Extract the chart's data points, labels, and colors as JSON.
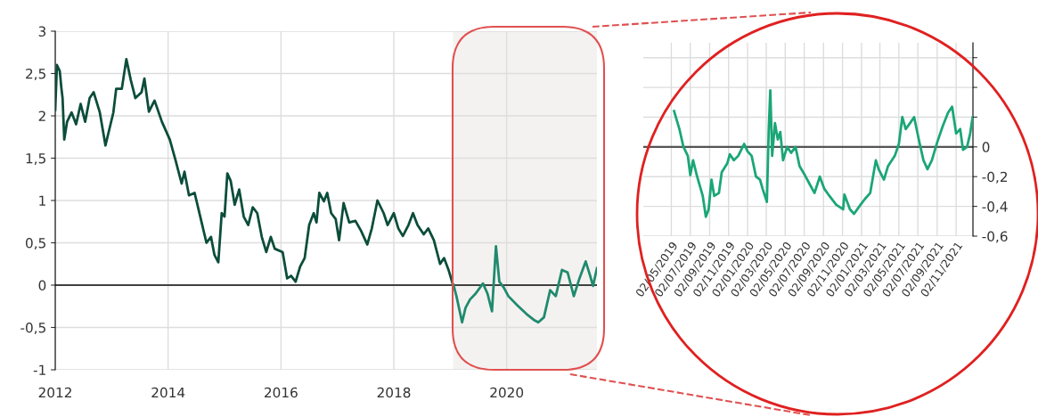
{
  "chart_data": [
    {
      "type": "line",
      "xlim": [
        2012,
        2021.6
      ],
      "ylim": [
        -1,
        3
      ],
      "xticks": [
        2012,
        2014,
        2016,
        2018,
        2020
      ],
      "yticks": [
        {
          "value": -1,
          "label": "-1"
        },
        {
          "value": -0.5,
          "label": "-0,5"
        },
        {
          "value": 0,
          "label": "0"
        },
        {
          "value": 0.5,
          "label": "0,5"
        },
        {
          "value": 1,
          "label": "1"
        },
        {
          "value": 1.5,
          "label": "1,5"
        },
        {
          "value": 2,
          "label": "2"
        },
        {
          "value": 2.5,
          "label": "2,5"
        },
        {
          "value": 3,
          "label": "3"
        }
      ],
      "grid": true,
      "ref_lines": [
        {
          "axis": "y",
          "value": 0,
          "color": "#404040"
        }
      ],
      "bands": [
        {
          "axis": "x",
          "from": 2019.05,
          "to": 2021.6,
          "color": "#f4f2f0"
        }
      ],
      "series": [
        {
          "color": "#0b4d3a",
          "x": [
            2012.0,
            2012.03,
            2012.08,
            2012.11,
            2012.13,
            2012.16,
            2012.21,
            2012.29,
            2012.37,
            2012.45,
            2012.53,
            2012.61,
            2012.68,
            2012.79,
            2012.89,
            2013.03,
            2013.08,
            2013.18,
            2013.26,
            2013.34,
            2013.42,
            2013.53,
            2013.58,
            2013.66,
            2013.76,
            2013.89,
            2014.03,
            2014.13,
            2014.24,
            2014.29,
            2014.37,
            2014.47,
            2014.58,
            2014.68,
            2014.76,
            2014.82,
            2014.89,
            2014.95,
            2015.0,
            2015.05,
            2015.11,
            2015.18,
            2015.26,
            2015.34,
            2015.42,
            2015.5,
            2015.58,
            2015.66,
            2015.74,
            2015.82,
            2015.89,
            2016.03,
            2016.11,
            2016.18,
            2016.26,
            2016.34,
            2016.42,
            2016.5,
            2016.58,
            2016.63,
            2016.68,
            2016.76,
            2016.82,
            2016.89,
            2016.97,
            2017.03,
            2017.11,
            2017.21,
            2017.32,
            2017.42,
            2017.53,
            2017.61,
            2017.71,
            2017.82,
            2017.89,
            2018.0,
            2018.08,
            2018.16,
            2018.26,
            2018.34,
            2018.42,
            2018.53,
            2018.61,
            2018.71,
            2018.82,
            2018.89,
            2018.97,
            2019.05
          ],
          "values": [
            2.07,
            2.6,
            2.53,
            2.32,
            2.21,
            1.72,
            1.93,
            2.04,
            1.9,
            2.14,
            1.93,
            2.21,
            2.28,
            2.04,
            1.65,
            2.04,
            2.32,
            2.32,
            2.67,
            2.42,
            2.21,
            2.28,
            2.44,
            2.05,
            2.18,
            1.93,
            1.72,
            1.48,
            1.2,
            1.34,
            1.06,
            1.09,
            0.78,
            0.5,
            0.57,
            0.36,
            0.27,
            0.85,
            0.81,
            1.32,
            1.23,
            0.95,
            1.13,
            0.81,
            0.71,
            0.92,
            0.85,
            0.57,
            0.39,
            0.57,
            0.43,
            0.39,
            0.08,
            0.11,
            0.04,
            0.22,
            0.32,
            0.71,
            0.85,
            0.74,
            1.09,
            0.99,
            1.09,
            0.85,
            0.78,
            0.53,
            0.97,
            0.74,
            0.76,
            0.64,
            0.48,
            0.67,
            1.0,
            0.85,
            0.71,
            0.85,
            0.67,
            0.58,
            0.71,
            0.85,
            0.71,
            0.6,
            0.67,
            0.53,
            0.25,
            0.32,
            0.18,
            0
          ]
        },
        {
          "color": "#1f8a6e",
          "x": [
            2019.06,
            2019.11,
            2019.21,
            2019.27,
            2019.35,
            2019.45,
            2019.58,
            2019.66,
            2019.74,
            2019.81,
            2019.87,
            2019.95,
            2020.03,
            2020.19,
            2020.35,
            2020.48,
            2020.56,
            2020.66,
            2020.77,
            2020.87,
            2020.98,
            2021.08,
            2021.19,
            2021.29,
            2021.4,
            2021.48,
            2021.53,
            2021.6
          ],
          "values": [
            0,
            -0.13,
            -0.44,
            -0.27,
            -0.17,
            -0.1,
            0.02,
            -0.1,
            -0.31,
            0.46,
            0.04,
            -0.03,
            -0.13,
            -0.24,
            -0.34,
            -0.41,
            -0.44,
            -0.38,
            -0.06,
            -0.13,
            0.18,
            0.15,
            -0.13,
            0.08,
            0.28,
            0.11,
            -0.01,
            0.2
          ]
        }
      ]
    },
    {
      "type": "line",
      "xlim": [
        "2019-02-01",
        "2021-12-26"
      ],
      "ylim": [
        -0.6,
        0.7
      ],
      "xticks": [
        {
          "value": "2019-05-02",
          "label": "02/05/2019"
        },
        {
          "value": "2019-07-02",
          "label": "02/07/2019"
        },
        {
          "value": "2019-09-02",
          "label": "02/09/2019"
        },
        {
          "value": "2019-11-02",
          "label": "02/11/2019"
        },
        {
          "value": "2020-01-02",
          "label": "02/01/2020"
        },
        {
          "value": "2020-03-02",
          "label": "02/03/2020"
        },
        {
          "value": "2020-05-02",
          "label": "02/05/2020"
        },
        {
          "value": "2020-07-02",
          "label": "02/07/2020"
        },
        {
          "value": "2020-09-02",
          "label": "02/09/2020"
        },
        {
          "value": "2020-11-02",
          "label": "02/11/2020"
        },
        {
          "value": "2021-01-02",
          "label": "02/01/2021"
        },
        {
          "value": "2021-03-02",
          "label": "02/03/2021"
        },
        {
          "value": "2021-05-02",
          "label": "02/05/2021"
        },
        {
          "value": "2021-07-02",
          "label": "02/07/2021"
        },
        {
          "value": "2021-09-02",
          "label": "02/09/2021"
        },
        {
          "value": "2021-11-02",
          "label": "02/11/2021"
        }
      ],
      "yticks": [
        {
          "value": -0.6,
          "label": "-0,6"
        },
        {
          "value": -0.4,
          "label": "-0,4"
        },
        {
          "value": -0.2,
          "label": "-0,2"
        },
        {
          "value": 0,
          "label": "0"
        },
        {
          "value": 0.2,
          "label": null
        },
        {
          "value": 0.4,
          "label": null
        },
        {
          "value": 0.6,
          "label": null
        }
      ],
      "grid": true,
      "ref_lines": [
        {
          "axis": "y",
          "value": 0,
          "color": "#555555"
        }
      ],
      "series": [
        {
          "color": "#1aa676",
          "x": [
            "2019-05-11",
            "2019-05-28",
            "2019-06-10",
            "2019-06-24",
            "2019-07-02",
            "2019-07-11",
            "2019-07-24",
            "2019-08-11",
            "2019-08-21",
            "2019-08-30",
            "2019-09-08",
            "2019-09-17",
            "2019-10-02",
            "2019-10-11",
            "2019-10-29",
            "2019-11-06",
            "2019-11-19",
            "2019-12-03",
            "2019-12-22",
            "2020-01-02",
            "2020-01-15",
            "2020-01-29",
            "2020-02-11",
            "2020-02-19",
            "2020-03-04",
            "2020-03-10",
            "2020-03-15",
            "2020-03-21",
            "2020-03-30",
            "2020-04-08",
            "2020-04-16",
            "2020-04-25",
            "2020-05-08",
            "2020-05-21",
            "2020-06-04",
            "2020-06-17",
            "2020-07-04",
            "2020-07-22",
            "2020-08-04",
            "2020-08-21",
            "2020-09-04",
            "2020-09-21",
            "2020-10-13",
            "2020-11-04",
            "2020-11-08",
            "2020-11-26",
            "2020-12-09",
            "2020-12-26",
            "2021-01-13",
            "2021-01-30",
            "2021-02-17",
            "2021-02-26",
            "2021-03-15",
            "2021-03-28",
            "2021-04-19",
            "2021-05-02",
            "2021-05-13",
            "2021-05-24",
            "2021-06-07",
            "2021-06-20",
            "2021-07-07",
            "2021-07-20",
            "2021-08-02",
            "2021-08-16",
            "2021-09-02",
            "2021-09-20",
            "2021-10-07",
            "2021-10-20",
            "2021-11-02",
            "2021-11-15",
            "2021-11-24",
            "2021-12-07",
            "2021-12-17",
            "2021-12-25"
          ],
          "values": [
            0.24,
            0.12,
            0.0,
            -0.06,
            -0.19,
            -0.09,
            -0.2,
            -0.33,
            -0.47,
            -0.42,
            -0.22,
            -0.33,
            -0.31,
            -0.17,
            -0.11,
            -0.05,
            -0.09,
            -0.06,
            0.02,
            -0.03,
            -0.06,
            -0.2,
            -0.22,
            -0.28,
            -0.37,
            0.12,
            0.38,
            -0.06,
            0.16,
            0.05,
            0.1,
            -0.09,
            0.0,
            -0.04,
            0.0,
            -0.13,
            -0.19,
            -0.26,
            -0.31,
            -0.2,
            -0.28,
            -0.33,
            -0.39,
            -0.42,
            -0.32,
            -0.42,
            -0.45,
            -0.4,
            -0.35,
            -0.31,
            -0.09,
            -0.15,
            -0.22,
            -0.13,
            -0.06,
            0.02,
            0.2,
            0.12,
            0.16,
            0.2,
            0.03,
            -0.09,
            -0.15,
            -0.09,
            0.03,
            0.14,
            0.23,
            0.27,
            0.09,
            0.12,
            -0.02,
            0.0,
            0.09,
            0.2
          ]
        }
      ]
    }
  ]
}
